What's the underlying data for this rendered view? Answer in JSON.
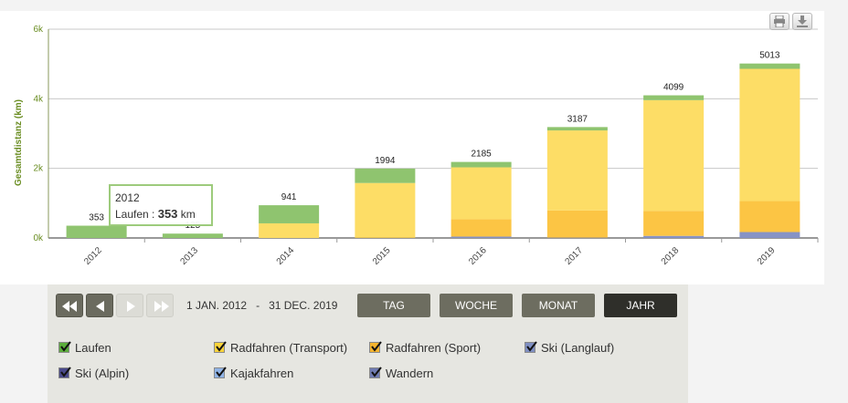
{
  "chart_data": {
    "type": "bar",
    "stacked": true,
    "title": "",
    "xlabel": "",
    "ylabel": "Gesamtdistanz (km)",
    "ylim": [
      0,
      6000
    ],
    "yticks": [
      {
        "value": 0,
        "label": "0k"
      },
      {
        "value": 2000,
        "label": "2k"
      },
      {
        "value": 4000,
        "label": "4k"
      },
      {
        "value": 6000,
        "label": "6k"
      }
    ],
    "categories": [
      "2012",
      "2013",
      "2014",
      "2015",
      "2016",
      "2017",
      "2018",
      "2019"
    ],
    "totals": [
      "353",
      "125",
      "941",
      "1994",
      "2185",
      "3187",
      "4099",
      "5013"
    ],
    "totals_values": [
      353,
      125,
      941,
      1994,
      2185,
      3187,
      4099,
      5013
    ],
    "grid": true,
    "series": [
      {
        "name": "Ski (Alpin)",
        "color": "#5a5a8c",
        "values": [
          0,
          0,
          0,
          0,
          0,
          0,
          0,
          0
        ]
      },
      {
        "name": "Wandern",
        "color": "#7a85b5",
        "values": [
          0,
          0,
          0,
          0,
          0,
          0,
          0,
          0
        ]
      },
      {
        "name": "Ski (Langlauf)",
        "color": "#8793c5",
        "values": [
          0,
          0,
          0,
          0,
          40,
          10,
          60,
          170
        ]
      },
      {
        "name": "Kajakfahren",
        "color": "#9ab8e6",
        "values": [
          0,
          0,
          0,
          0,
          0,
          0,
          0,
          0
        ]
      },
      {
        "name": "Radfahren (Sport)",
        "color": "#fcc544",
        "values": [
          0,
          0,
          0,
          10,
          500,
          780,
          720,
          890
        ]
      },
      {
        "name": "Radfahren (Transport)",
        "color": "#fddd66",
        "values": [
          0,
          0,
          420,
          1570,
          1490,
          2300,
          3180,
          3800
        ]
      },
      {
        "name": "Laufen",
        "color": "#8fc46f",
        "values": [
          353,
          125,
          521,
          414,
          155,
          97,
          139,
          153
        ]
      }
    ]
  },
  "tooltip": {
    "year": "2012",
    "label": "Laufen :",
    "value": "353",
    "unit": "km"
  },
  "controls": {
    "date_start": "1 JAN. 2012",
    "date_sep": "-",
    "date_end": "31 DEC. 2019",
    "periods": [
      {
        "label": "TAG",
        "active": false
      },
      {
        "label": "WOCHE",
        "active": false
      },
      {
        "label": "MONAT",
        "active": false
      },
      {
        "label": "JAHR",
        "active": true
      }
    ]
  },
  "legend": [
    {
      "label": "Laufen",
      "color": "#5cae3c",
      "checked": true
    },
    {
      "label": "Radfahren (Transport)",
      "color": "#fcd43a",
      "checked": true
    },
    {
      "label": "Radfahren (Sport)",
      "color": "#f7b52e",
      "checked": true
    },
    {
      "label": "Ski (Langlauf)",
      "color": "#7f8fc2",
      "checked": true
    },
    {
      "label": "Ski (Alpin)",
      "color": "#4a4a8a",
      "checked": true
    },
    {
      "label": "Kajakfahren",
      "color": "#8fb3e6",
      "checked": true
    },
    {
      "label": "Wandern",
      "color": "#6f7bb2",
      "checked": true
    }
  ]
}
